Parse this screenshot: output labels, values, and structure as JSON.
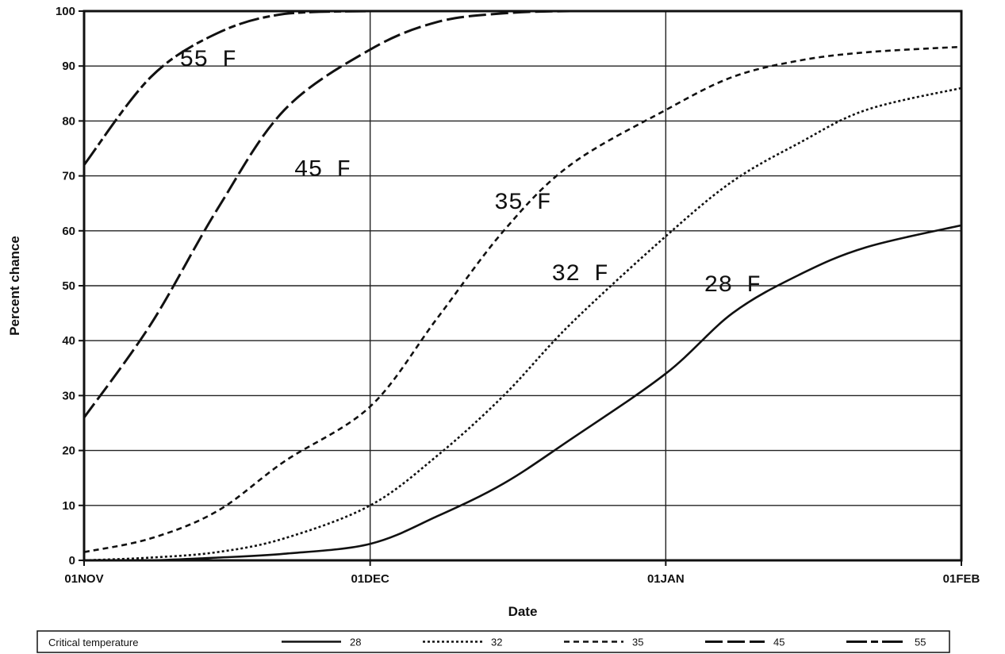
{
  "chart_data": {
    "type": "line",
    "xlabel": "Date",
    "ylabel": "Percent chance",
    "x_ticks": [
      "01NOV",
      "01DEC",
      "01JAN",
      "01FEB"
    ],
    "x_range": [
      "01NOV",
      "01FEB"
    ],
    "y_ticks": [
      "0",
      "10",
      "20",
      "30",
      "40",
      "50",
      "60",
      "70",
      "80",
      "90",
      "100"
    ],
    "ylim": [
      0,
      100
    ],
    "grid": true,
    "legend_title": "Critical temperature",
    "legend_position": "bottom",
    "x": [
      "01NOV",
      "08NOV",
      "15NOV",
      "22NOV",
      "01DEC",
      "08DEC",
      "15DEC",
      "22DEC",
      "01JAN",
      "08JAN",
      "15JAN",
      "22JAN",
      "01FEB"
    ],
    "series": [
      {
        "name": "28",
        "dash": "solid",
        "curve_label": "28 F",
        "values": [
          0,
          0,
          0.5,
          1.2,
          3,
          8,
          14,
          22,
          34,
          45,
          52,
          57,
          61
        ]
      },
      {
        "name": "32",
        "dash": "dotted",
        "curve_label": "32 F",
        "values": [
          0,
          0.5,
          1.5,
          4,
          10,
          19,
          30,
          43,
          59,
          69,
          76,
          82,
          86
        ]
      },
      {
        "name": "35",
        "dash": "short-dash",
        "curve_label": "35 F",
        "values": [
          1.5,
          4,
          9,
          18,
          28,
          44,
          60,
          72,
          82,
          88,
          91,
          92.5,
          93.5
        ]
      },
      {
        "name": "45",
        "dash": "long-dash",
        "curve_label": "45 F",
        "values": [
          26,
          43,
          64,
          82,
          93,
          98,
          99.6,
          100,
          100,
          100,
          100,
          100,
          100
        ]
      },
      {
        "name": "55",
        "dash": "long-short-dash",
        "curve_label": "55 F",
        "values": [
          72,
          88,
          96,
          99.5,
          100,
          100,
          100,
          100,
          100,
          100,
          100,
          100,
          100
        ]
      }
    ],
    "curve_label_anchors": [
      {
        "series": "55",
        "x": "11NOV",
        "y": 90
      },
      {
        "series": "45",
        "x": "23NOV",
        "y": 70
      },
      {
        "series": "35",
        "x": "14DEC",
        "y": 64
      },
      {
        "series": "32",
        "x": "20DEC",
        "y": 51
      },
      {
        "series": "28",
        "x": "05JAN",
        "y": 49
      }
    ]
  }
}
